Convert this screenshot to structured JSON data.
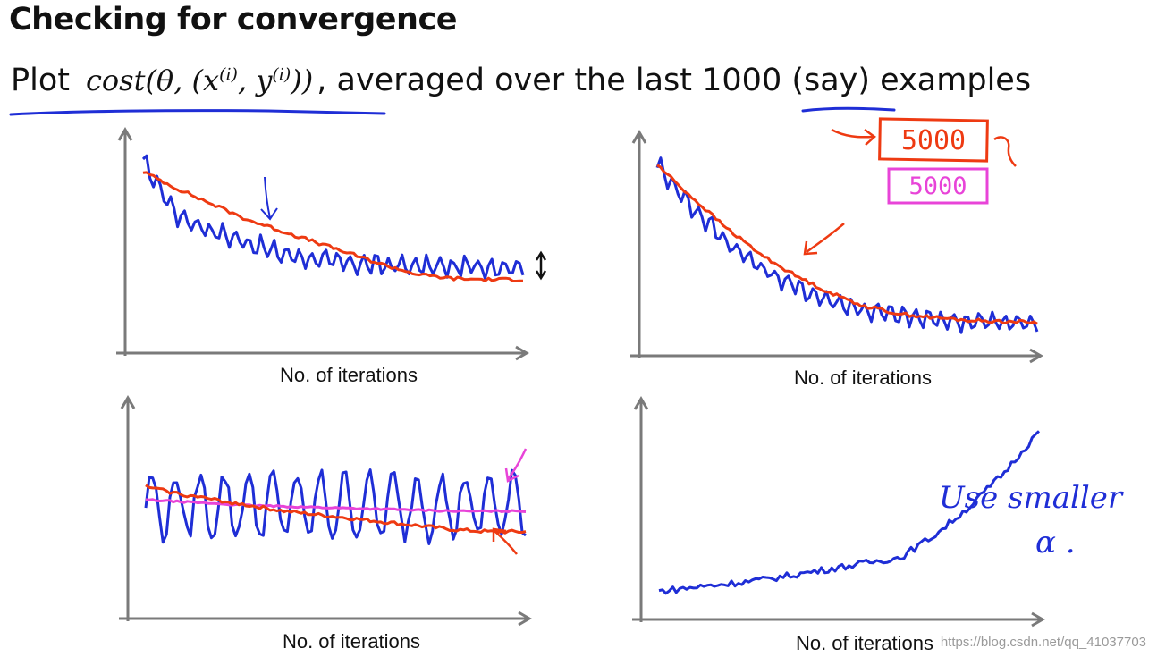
{
  "header": {
    "title": "Checking for convergence",
    "plot_word": "Plot",
    "cost_func": "cost",
    "cost_args_before": "(θ, (x",
    "cost_sup_i1": "(i)",
    "cost_args_mid": ", y",
    "cost_sup_i2": "(i)",
    "cost_args_after": "))",
    "subtitle_rest": ", averaged over the last ",
    "number": "1000",
    "subtitle_end": " (say) examples"
  },
  "annotations": {
    "box_red": "5000",
    "box_pink": "5000",
    "note_line1": "Use smaller",
    "note_line2": "α ."
  },
  "colors": {
    "axis": "#7a7a7a",
    "blue": "#1f2ed6",
    "red": "#ee3a12",
    "pink": "#e844d8",
    "text": "#111111"
  },
  "watermark": "https://blog.csdn.net/qq_41037703",
  "chart_data": [
    {
      "type": "line",
      "panel": "top-left",
      "xlabel": "No. of iterations",
      "ylabel": "",
      "series": [
        {
          "name": "blue",
          "color": "blue",
          "shape": "decay-noisy",
          "values": [
            10,
            7.2,
            6.4,
            5.8,
            5.2,
            4.9,
            4.7,
            4.6,
            4.55,
            4.5,
            4.55,
            4.5
          ]
        },
        {
          "name": "red",
          "color": "red",
          "shape": "decay",
          "values": [
            9.5,
            8.6,
            7.8,
            7.0,
            6.4,
            5.8,
            5.2,
            4.6,
            4.1,
            3.9,
            3.85,
            3.85
          ]
        }
      ]
    },
    {
      "type": "line",
      "panel": "top-right",
      "xlabel": "No. of iterations",
      "ylabel": "",
      "series": [
        {
          "name": "blue",
          "color": "blue",
          "shape": "decay-noisy",
          "values": [
            10,
            7.8,
            6.0,
            4.6,
            3.6,
            2.9,
            2.4,
            2.1,
            1.9,
            1.8,
            1.75,
            1.7
          ]
        },
        {
          "name": "red",
          "color": "red",
          "shape": "decay",
          "values": [
            10,
            8.3,
            6.7,
            5.3,
            4.2,
            3.3,
            2.6,
            2.2,
            2.0,
            1.85,
            1.8,
            1.75
          ]
        }
      ]
    },
    {
      "type": "line",
      "panel": "bottom-left",
      "xlabel": "No. of iterations",
      "ylabel": "",
      "series": [
        {
          "name": "blue",
          "color": "blue",
          "shape": "oscillating",
          "values": [
            6,
            6,
            6,
            6,
            6,
            6,
            6,
            6,
            6,
            6,
            6,
            6
          ]
        },
        {
          "name": "pink",
          "color": "pink",
          "shape": "flat",
          "values": [
            6.3,
            6.2,
            6.1,
            6.0,
            5.95,
            5.9,
            5.85,
            5.8,
            5.75,
            5.7,
            5.7,
            5.7
          ]
        },
        {
          "name": "red",
          "color": "red",
          "shape": "decay",
          "values": [
            7.0,
            6.6,
            6.3,
            6.0,
            5.7,
            5.5,
            5.3,
            5.1,
            4.9,
            4.7,
            4.6,
            4.6
          ]
        }
      ]
    },
    {
      "type": "line",
      "panel": "bottom-right",
      "xlabel": "No. of iterations",
      "ylabel": "",
      "series": [
        {
          "name": "blue",
          "color": "blue",
          "shape": "growth",
          "values": [
            1.5,
            1.7,
            1.9,
            2.1,
            2.4,
            2.7,
            3.0,
            3.3,
            4.5,
            6.0,
            7.8,
            10
          ]
        }
      ]
    }
  ]
}
